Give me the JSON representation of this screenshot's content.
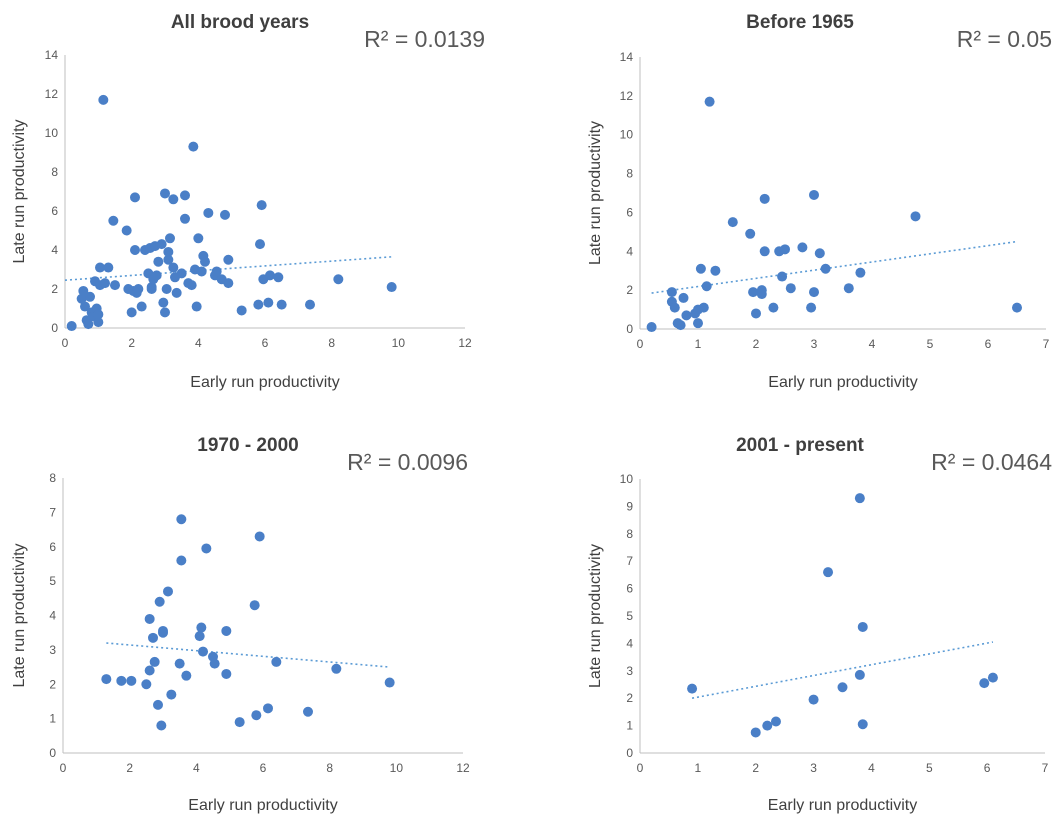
{
  "chart_data": [
    {
      "type": "scatter",
      "title": "All brood years",
      "annotation": "R² = 0.0139",
      "xlabel": "Early run productivity",
      "ylabel": "Late run productivity",
      "xlim": [
        0,
        12
      ],
      "ylim": [
        0,
        14
      ],
      "xticks": [
        0,
        2,
        4,
        6,
        8,
        10,
        12
      ],
      "yticks": [
        0,
        2,
        4,
        6,
        8,
        10,
        12,
        14
      ],
      "grid": false,
      "trendline": {
        "type": "linear",
        "style": "dotted",
        "x": [
          0,
          9.8
        ],
        "y": [
          2.45,
          3.65
        ]
      },
      "points": [
        [
          0.2,
          0.1
        ],
        [
          0.5,
          1.5
        ],
        [
          0.55,
          1.9
        ],
        [
          0.6,
          1.1
        ],
        [
          0.65,
          0.4
        ],
        [
          0.7,
          0.2
        ],
        [
          0.75,
          1.6
        ],
        [
          0.8,
          0.8
        ],
        [
          0.85,
          0.6
        ],
        [
          0.9,
          2.4
        ],
        [
          0.95,
          1.0
        ],
        [
          1.0,
          0.3
        ],
        [
          1.0,
          0.7
        ],
        [
          1.05,
          3.1
        ],
        [
          1.05,
          2.2
        ],
        [
          1.15,
          11.7
        ],
        [
          1.2,
          2.3
        ],
        [
          1.3,
          3.1
        ],
        [
          1.45,
          5.5
        ],
        [
          1.5,
          2.2
        ],
        [
          1.85,
          5.0
        ],
        [
          1.9,
          2.0
        ],
        [
          2.0,
          0.8
        ],
        [
          2.05,
          1.9
        ],
        [
          2.1,
          6.7
        ],
        [
          2.1,
          4.0
        ],
        [
          2.15,
          1.8
        ],
        [
          2.2,
          2.0
        ],
        [
          2.3,
          1.1
        ],
        [
          2.4,
          4.0
        ],
        [
          2.5,
          2.8
        ],
        [
          2.55,
          4.1
        ],
        [
          2.6,
          2.1
        ],
        [
          2.6,
          2.0
        ],
        [
          2.65,
          2.5
        ],
        [
          2.7,
          4.2
        ],
        [
          2.75,
          2.7
        ],
        [
          2.8,
          3.4
        ],
        [
          2.9,
          4.3
        ],
        [
          2.95,
          1.3
        ],
        [
          3.0,
          6.9
        ],
        [
          3.0,
          0.8
        ],
        [
          3.05,
          2.0
        ],
        [
          3.1,
          3.5
        ],
        [
          3.1,
          3.9
        ],
        [
          3.15,
          4.6
        ],
        [
          3.25,
          6.6
        ],
        [
          3.25,
          3.1
        ],
        [
          3.3,
          2.6
        ],
        [
          3.35,
          1.8
        ],
        [
          3.5,
          2.8
        ],
        [
          3.6,
          5.6
        ],
        [
          3.6,
          6.8
        ],
        [
          3.7,
          2.3
        ],
        [
          3.8,
          2.2
        ],
        [
          3.85,
          9.3
        ],
        [
          3.9,
          3.0
        ],
        [
          3.95,
          1.1
        ],
        [
          4.0,
          4.6
        ],
        [
          4.1,
          2.9
        ],
        [
          4.15,
          3.7
        ],
        [
          4.2,
          3.4
        ],
        [
          4.3,
          5.9
        ],
        [
          4.5,
          2.7
        ],
        [
          4.55,
          2.9
        ],
        [
          4.7,
          2.5
        ],
        [
          4.8,
          5.8
        ],
        [
          4.9,
          2.3
        ],
        [
          4.9,
          3.5
        ],
        [
          5.3,
          0.9
        ],
        [
          5.8,
          1.2
        ],
        [
          5.85,
          4.3
        ],
        [
          5.9,
          6.3
        ],
        [
          5.95,
          2.5
        ],
        [
          6.1,
          1.3
        ],
        [
          6.15,
          2.7
        ],
        [
          6.4,
          2.6
        ],
        [
          6.5,
          1.2
        ],
        [
          7.35,
          1.2
        ],
        [
          8.2,
          2.5
        ],
        [
          9.8,
          2.1
        ]
      ]
    },
    {
      "type": "scatter",
      "title": "Before 1965",
      "annotation": "R² = 0.05",
      "xlabel": "Early run productivity",
      "ylabel": "Late run productivity",
      "xlim": [
        0,
        7
      ],
      "ylim": [
        0,
        14
      ],
      "xticks": [
        0,
        1,
        2,
        3,
        4,
        5,
        6,
        7
      ],
      "yticks": [
        0,
        2,
        4,
        6,
        8,
        10,
        12,
        14
      ],
      "grid": false,
      "trendline": {
        "type": "linear",
        "style": "dotted",
        "x": [
          0.2,
          6.5
        ],
        "y": [
          1.85,
          4.5
        ]
      },
      "points": [
        [
          0.2,
          0.1
        ],
        [
          0.55,
          1.4
        ],
        [
          0.55,
          1.9
        ],
        [
          0.6,
          1.1
        ],
        [
          0.65,
          0.3
        ],
        [
          0.7,
          0.2
        ],
        [
          0.75,
          1.6
        ],
        [
          0.8,
          0.7
        ],
        [
          0.95,
          0.8
        ],
        [
          1.0,
          0.3
        ],
        [
          1.0,
          1.0
        ],
        [
          1.05,
          3.1
        ],
        [
          1.1,
          1.1
        ],
        [
          1.15,
          2.2
        ],
        [
          1.2,
          11.7
        ],
        [
          1.3,
          3.0
        ],
        [
          1.6,
          5.5
        ],
        [
          1.9,
          4.9
        ],
        [
          1.95,
          1.9
        ],
        [
          2.0,
          0.8
        ],
        [
          2.1,
          1.8
        ],
        [
          2.1,
          2.0
        ],
        [
          2.15,
          4.0
        ],
        [
          2.15,
          6.7
        ],
        [
          2.3,
          1.1
        ],
        [
          2.4,
          4.0
        ],
        [
          2.45,
          2.7
        ],
        [
          2.5,
          4.1
        ],
        [
          2.6,
          2.1
        ],
        [
          2.8,
          4.2
        ],
        [
          2.95,
          1.1
        ],
        [
          3.0,
          1.9
        ],
        [
          3.0,
          6.9
        ],
        [
          3.1,
          3.9
        ],
        [
          3.2,
          3.1
        ],
        [
          3.6,
          2.1
        ],
        [
          3.8,
          2.9
        ],
        [
          4.75,
          5.8
        ],
        [
          6.5,
          1.1
        ]
      ]
    },
    {
      "type": "scatter",
      "title": "1970 - 2000",
      "annotation": "R² = 0.0096",
      "xlabel": "Early run productivity",
      "ylabel": "Late run productivity",
      "xlim": [
        0,
        12
      ],
      "ylim": [
        0,
        8
      ],
      "xticks": [
        0,
        2,
        4,
        6,
        8,
        10,
        12
      ],
      "yticks": [
        0,
        1,
        2,
        3,
        4,
        5,
        6,
        7,
        8
      ],
      "grid": false,
      "trendline": {
        "type": "linear",
        "style": "dotted",
        "x": [
          1.3,
          9.8
        ],
        "y": [
          3.2,
          2.5
        ]
      },
      "points": [
        [
          1.3,
          2.15
        ],
        [
          1.75,
          2.1
        ],
        [
          2.05,
          2.1
        ],
        [
          2.5,
          2.0
        ],
        [
          2.6,
          2.4
        ],
        [
          2.6,
          3.9
        ],
        [
          2.7,
          3.35
        ],
        [
          2.75,
          2.65
        ],
        [
          2.85,
          1.4
        ],
        [
          2.9,
          4.4
        ],
        [
          2.95,
          0.8
        ],
        [
          3.0,
          3.5
        ],
        [
          3.0,
          3.55
        ],
        [
          3.15,
          4.7
        ],
        [
          3.25,
          1.7
        ],
        [
          3.5,
          2.6
        ],
        [
          3.55,
          6.8
        ],
        [
          3.55,
          5.6
        ],
        [
          3.7,
          2.25
        ],
        [
          4.1,
          3.4
        ],
        [
          4.15,
          3.65
        ],
        [
          4.2,
          2.95
        ],
        [
          4.3,
          5.95
        ],
        [
          4.5,
          2.8
        ],
        [
          4.55,
          2.6
        ],
        [
          4.9,
          2.3
        ],
        [
          4.9,
          3.55
        ],
        [
          5.3,
          0.9
        ],
        [
          5.75,
          4.3
        ],
        [
          5.8,
          1.1
        ],
        [
          5.9,
          6.3
        ],
        [
          6.15,
          1.3
        ],
        [
          6.4,
          2.65
        ],
        [
          7.35,
          1.2
        ],
        [
          8.2,
          2.45
        ],
        [
          9.8,
          2.05
        ]
      ]
    },
    {
      "type": "scatter",
      "title": "2001 - present",
      "annotation": "R² = 0.0464",
      "xlabel": "Early run productivity",
      "ylabel": "Late run productivity",
      "xlim": [
        0,
        7
      ],
      "ylim": [
        0,
        10
      ],
      "xticks": [
        0,
        1,
        2,
        3,
        4,
        5,
        6,
        7
      ],
      "yticks": [
        0,
        1,
        2,
        3,
        4,
        5,
        6,
        7,
        8,
        9,
        10
      ],
      "grid": false,
      "trendline": {
        "type": "linear",
        "style": "dotted",
        "x": [
          0.9,
          6.1
        ],
        "y": [
          2.0,
          4.05
        ]
      },
      "points": [
        [
          0.9,
          2.35
        ],
        [
          2.0,
          0.75
        ],
        [
          2.2,
          1.0
        ],
        [
          2.35,
          1.15
        ],
        [
          3.0,
          1.95
        ],
        [
          3.25,
          6.6
        ],
        [
          3.5,
          2.4
        ],
        [
          3.8,
          2.85
        ],
        [
          3.8,
          9.3
        ],
        [
          3.85,
          1.05
        ],
        [
          3.85,
          4.6
        ],
        [
          5.95,
          2.55
        ],
        [
          6.1,
          2.75
        ]
      ]
    }
  ]
}
